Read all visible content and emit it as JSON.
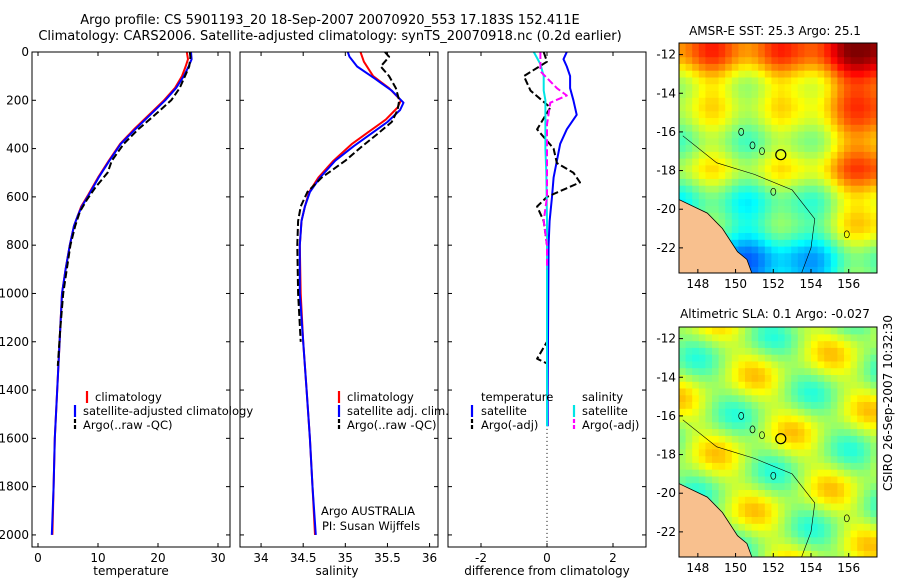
{
  "header": {
    "line1": "Argo profile: CS 5901193_20 18-Sep-2007 20070920_553 17.183S 152.411E",
    "line2": "Climatology: CARS2006. Satellite-adjusted climatology: synTS_20070918.nc (0.2d earlier)"
  },
  "side_stamp": "CSIRO 26-Sep-2007 10:32:30",
  "colors": {
    "climatology": "#ff0000",
    "satellite": "#0000ff",
    "argo": "#000000",
    "salinity_satellite": "#00e5e5",
    "salinity_argo": "#ff00ff",
    "land": "#f8c08e"
  },
  "chart_data": [
    {
      "type": "line",
      "title": "",
      "xlabel": "temperature",
      "ylabel": "",
      "xlim": [
        -1,
        32
      ],
      "ylim": [
        2050,
        0
      ],
      "x_ticks": [
        0,
        10,
        20,
        30
      ],
      "y_ticks": [
        0,
        200,
        400,
        600,
        800,
        1000,
        1200,
        1400,
        1600,
        1800,
        2000
      ],
      "legend": [
        "climatology",
        "satellite-adjusted climatology",
        "Argo(..raw -QC)"
      ],
      "series": [
        {
          "name": "climatology",
          "line": "solid",
          "color": "#ff0000",
          "points": [
            [
              24.8,
              0
            ],
            [
              25.0,
              30
            ],
            [
              24.6,
              60
            ],
            [
              24.0,
              100
            ],
            [
              22.8,
              150
            ],
            [
              21.0,
              200
            ],
            [
              18.5,
              260
            ],
            [
              16.0,
              320
            ],
            [
              13.7,
              380
            ],
            [
              11.8,
              450
            ],
            [
              10.0,
              520
            ],
            [
              8.4,
              590
            ],
            [
              7.2,
              640
            ],
            [
              6.6,
              680
            ],
            [
              6.0,
              720
            ],
            [
              5.3,
              800
            ],
            [
              4.6,
              900
            ],
            [
              4.0,
              1000
            ],
            [
              3.6,
              1200
            ],
            [
              3.2,
              1400
            ],
            [
              2.8,
              1600
            ],
            [
              2.6,
              1800
            ],
            [
              2.4,
              2000
            ]
          ]
        },
        {
          "name": "satellite-adjusted climatology",
          "line": "solid",
          "color": "#0000ff",
          "points": [
            [
              25.5,
              0
            ],
            [
              25.6,
              30
            ],
            [
              25.1,
              60
            ],
            [
              24.3,
              100
            ],
            [
              23.0,
              150
            ],
            [
              21.2,
              200
            ],
            [
              18.7,
              260
            ],
            [
              16.2,
              320
            ],
            [
              13.8,
              380
            ],
            [
              11.9,
              450
            ],
            [
              10.1,
              520
            ],
            [
              8.5,
              590
            ],
            [
              7.3,
              640
            ],
            [
              6.6,
              680
            ],
            [
              6.0,
              720
            ],
            [
              5.3,
              800
            ],
            [
              4.6,
              900
            ],
            [
              4.0,
              1000
            ],
            [
              3.6,
              1200
            ],
            [
              3.2,
              1400
            ],
            [
              2.8,
              1600
            ],
            [
              2.6,
              1800
            ],
            [
              2.3,
              2000
            ]
          ]
        },
        {
          "name": "Argo(..raw -QC)",
          "line": "dashed",
          "color": "#000000",
          "points": [
            [
              25.3,
              0
            ],
            [
              25.4,
              20
            ],
            [
              25.2,
              60
            ],
            [
              24.5,
              100
            ],
            [
              23.6,
              150
            ],
            [
              22.2,
              200
            ],
            [
              19.5,
              260
            ],
            [
              16.7,
              320
            ],
            [
              14.3,
              380
            ],
            [
              12.3,
              450
            ],
            [
              11.6,
              500
            ],
            [
              9.6,
              560
            ],
            [
              8.2,
              610
            ],
            [
              7.0,
              660
            ],
            [
              6.2,
              720
            ],
            [
              5.4,
              800
            ],
            [
              4.8,
              900
            ],
            [
              4.2,
              1000
            ],
            [
              3.7,
              1150
            ],
            [
              3.3,
              1300
            ]
          ]
        }
      ]
    },
    {
      "type": "line",
      "title": "",
      "xlabel": "salinity",
      "ylabel": "",
      "xlim": [
        33.75,
        36.1
      ],
      "ylim": [
        2050,
        0
      ],
      "x_ticks": [
        34,
        34.5,
        35,
        35.5,
        36
      ],
      "legend": [
        "climatology",
        "satellite adj. clim.",
        "Argo(..raw -QC)"
      ],
      "annotations": [
        "Argo AUSTRALIA",
        "PI: Susan Wijffels"
      ],
      "series": [
        {
          "name": "climatology",
          "line": "solid",
          "color": "#ff0000",
          "points": [
            [
              35.18,
              0
            ],
            [
              35.22,
              40
            ],
            [
              35.33,
              100
            ],
            [
              35.52,
              150
            ],
            [
              35.66,
              200
            ],
            [
              35.62,
              230
            ],
            [
              35.48,
              280
            ],
            [
              35.28,
              330
            ],
            [
              35.08,
              380
            ],
            [
              34.86,
              450
            ],
            [
              34.68,
              520
            ],
            [
              34.57,
              580
            ],
            [
              34.52,
              640
            ],
            [
              34.48,
              700
            ],
            [
              34.46,
              800
            ],
            [
              34.47,
              1000
            ],
            [
              34.5,
              1200
            ],
            [
              34.54,
              1400
            ],
            [
              34.58,
              1600
            ],
            [
              34.61,
              1800
            ],
            [
              34.64,
              2000
            ]
          ]
        },
        {
          "name": "satellite adj. clim.",
          "line": "solid",
          "color": "#0000ff",
          "points": [
            [
              35.03,
              0
            ],
            [
              35.05,
              20
            ],
            [
              35.14,
              60
            ],
            [
              35.35,
              110
            ],
            [
              35.55,
              160
            ],
            [
              35.69,
              210
            ],
            [
              35.65,
              240
            ],
            [
              35.5,
              290
            ],
            [
              35.3,
              340
            ],
            [
              35.1,
              390
            ],
            [
              34.88,
              450
            ],
            [
              34.7,
              520
            ],
            [
              34.58,
              580
            ],
            [
              34.52,
              640
            ],
            [
              34.48,
              700
            ],
            [
              34.46,
              800
            ],
            [
              34.46,
              1000
            ],
            [
              34.5,
              1200
            ],
            [
              34.54,
              1400
            ],
            [
              34.58,
              1600
            ],
            [
              34.61,
              1800
            ],
            [
              34.65,
              2000
            ]
          ]
        },
        {
          "name": "Argo(..raw -QC)",
          "line": "dashed",
          "color": "#000000",
          "points": [
            [
              35.47,
              0
            ],
            [
              35.52,
              20
            ],
            [
              35.42,
              60
            ],
            [
              35.52,
              100
            ],
            [
              35.6,
              150
            ],
            [
              35.64,
              200
            ],
            [
              35.62,
              240
            ],
            [
              35.55,
              290
            ],
            [
              35.38,
              340
            ],
            [
              35.2,
              390
            ],
            [
              35.0,
              450
            ],
            [
              34.72,
              520
            ],
            [
              34.55,
              580
            ],
            [
              34.47,
              640
            ],
            [
              34.44,
              700
            ],
            [
              34.43,
              800
            ],
            [
              34.44,
              1000
            ],
            [
              34.47,
              1200
            ]
          ]
        }
      ]
    },
    {
      "type": "line",
      "title": "",
      "xlabel": "difference from climatology",
      "ylabel": "",
      "xlim": [
        -3,
        3
      ],
      "ylim": [
        2050,
        0
      ],
      "x_ticks": [
        -2,
        0,
        2
      ],
      "zero_line": "dotted",
      "legend": [
        "temperature",
        "satellite",
        "Argo(-adj)",
        "salinity",
        "satellite",
        "Argo(-adj)"
      ],
      "series": [
        {
          "name": "temperature satellite",
          "line": "solid",
          "color": "#0000ff",
          "points": [
            [
              0.6,
              0
            ],
            [
              0.5,
              30
            ],
            [
              0.6,
              60
            ],
            [
              0.7,
              100
            ],
            [
              0.7,
              150
            ],
            [
              0.8,
              200
            ],
            [
              0.9,
              260
            ],
            [
              0.6,
              320
            ],
            [
              0.4,
              380
            ],
            [
              0.3,
              450
            ],
            [
              0.2,
              520
            ],
            [
              0.15,
              600
            ],
            [
              0.08,
              700
            ],
            [
              0.05,
              800
            ],
            [
              0.04,
              1000
            ],
            [
              0.03,
              1200
            ],
            [
              0.02,
              1400
            ],
            [
              0.02,
              1550
            ]
          ]
        },
        {
          "name": "temperature Argo(-adj)",
          "line": "dashed",
          "color": "#000000",
          "points": [
            [
              -0.1,
              0
            ],
            [
              0.0,
              40
            ],
            [
              -0.7,
              100
            ],
            [
              -0.5,
              160
            ],
            [
              0.1,
              230
            ],
            [
              -0.3,
              320
            ],
            [
              0.2,
              400
            ],
            [
              0.3,
              460
            ],
            [
              0.8,
              500
            ],
            [
              1.0,
              540
            ],
            [
              0.0,
              600
            ],
            [
              -0.3,
              640
            ],
            [
              -0.1,
              700
            ],
            [
              0.0,
              800
            ],
            [
              0.0,
              1000
            ],
            [
              0.0,
              1200
            ],
            [
              -0.3,
              1270
            ],
            [
              0.0,
              1290
            ]
          ]
        },
        {
          "name": "salinity satellite",
          "line": "solid",
          "color": "#00e5e5",
          "points": [
            [
              -0.4,
              0
            ],
            [
              -0.2,
              50
            ],
            [
              -0.1,
              100
            ],
            [
              -0.1,
              160
            ],
            [
              -0.05,
              200
            ],
            [
              -0.05,
              300
            ],
            [
              -0.05,
              400
            ],
            [
              -0.02,
              500
            ],
            [
              0.0,
              700
            ],
            [
              0.0,
              1000
            ],
            [
              0.0,
              1550
            ]
          ]
        },
        {
          "name": "salinity Argo(-adj)",
          "line": "dashed",
          "color": "#ff00ff",
          "points": [
            [
              -0.2,
              0
            ],
            [
              -0.2,
              80
            ],
            [
              0.3,
              150
            ],
            [
              0.6,
              180
            ],
            [
              0.1,
              210
            ],
            [
              0.0,
              300
            ],
            [
              0.0,
              600
            ],
            [
              -0.1,
              700
            ],
            [
              0.0,
              800
            ],
            [
              0.0,
              900
            ]
          ]
        }
      ]
    },
    {
      "type": "heatmap",
      "title": "AMSR-E SST: 25.3 Argo: 25.1",
      "xlim": [
        147,
        157.5
      ],
      "ylim": [
        -23.3,
        -11.4
      ],
      "x_ticks": [
        148,
        150,
        152,
        154,
        156
      ],
      "y_ticks": [
        -12,
        -14,
        -16,
        -18,
        -20,
        -22
      ],
      "marker": [
        152.4,
        -17.18
      ],
      "colormap": "jet"
    },
    {
      "type": "heatmap",
      "title": "Altimetric SLA: 0.1 Argo: -0.027",
      "xlim": [
        147,
        157.5
      ],
      "ylim": [
        -23.3,
        -11.4
      ],
      "x_ticks": [
        148,
        150,
        152,
        154,
        156
      ],
      "y_ticks": [
        -12,
        -14,
        -16,
        -18,
        -20,
        -22
      ],
      "marker": [
        152.4,
        -17.18
      ],
      "colormap": "jet"
    }
  ]
}
